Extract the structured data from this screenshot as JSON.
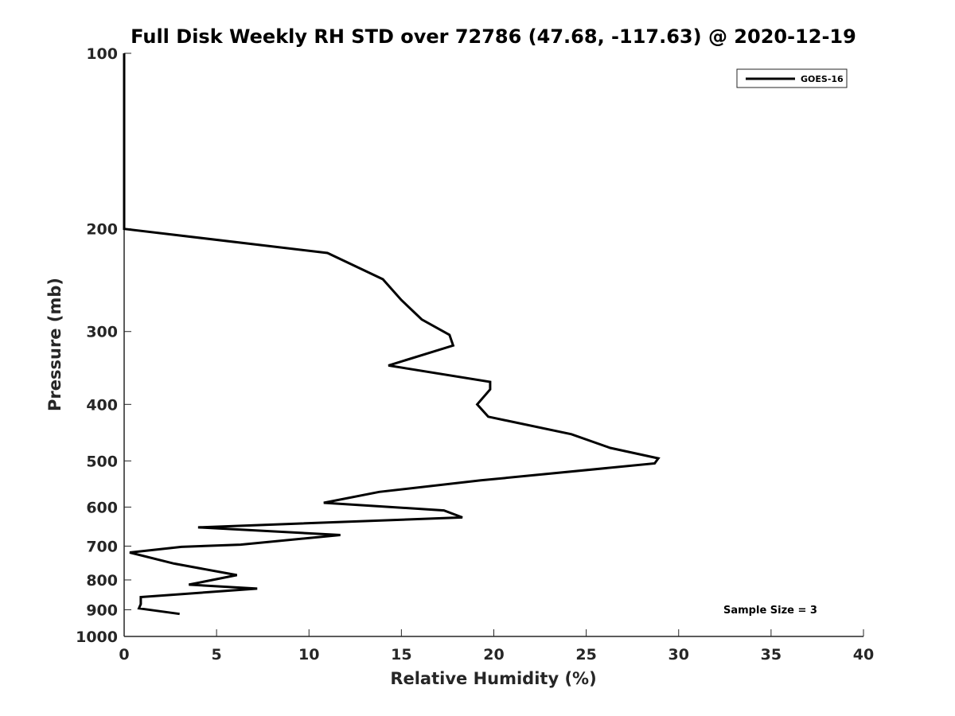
{
  "chart_data": {
    "type": "line",
    "title": "Full Disk Weekly RH STD over 72786 (47.68, -117.63) @ 2020-12-19",
    "xlabel": "Relative Humidity (%)",
    "ylabel": "Pressure (mb)",
    "xlim": [
      0,
      40
    ],
    "ylim": [
      100,
      1000
    ],
    "yscale": "log",
    "y_reversed": true,
    "grid": false,
    "x_ticks": [
      "0",
      "5",
      "10",
      "15",
      "20",
      "25",
      "30",
      "35",
      "40"
    ],
    "y_ticks": [
      "100",
      "200",
      "300",
      "400",
      "500",
      "600",
      "700",
      "800",
      "900",
      "1000"
    ],
    "legend": {
      "position": "top-right",
      "entries": [
        "GOES-16"
      ]
    },
    "annotation": "Sample Size = 3",
    "series": [
      {
        "name": "GOES-16",
        "color": "#000000",
        "rh": [
          0.0,
          0.0,
          0.0,
          11.0,
          14.0,
          15.0,
          16.1,
          17.6,
          17.8,
          14.3,
          19.8,
          19.8,
          19.1,
          19.7,
          24.2,
          26.3,
          28.9,
          28.7,
          19.3,
          13.8,
          10.8,
          17.3,
          18.3,
          4.0,
          11.7,
          6.3,
          3.1,
          0.3,
          2.7,
          6.1,
          3.5,
          7.2,
          0.9,
          0.9,
          0.8,
          3.0
        ],
        "pressure": [
          100,
          150,
          200,
          220,
          244,
          265,
          286,
          304,
          317,
          343,
          366,
          377,
          400,
          420,
          450,
          475,
          495,
          505,
          540,
          565,
          590,
          608,
          625,
          650,
          670,
          696,
          702,
          718,
          750,
          785,
          815,
          828,
          856,
          880,
          895,
          915
        ]
      }
    ]
  }
}
